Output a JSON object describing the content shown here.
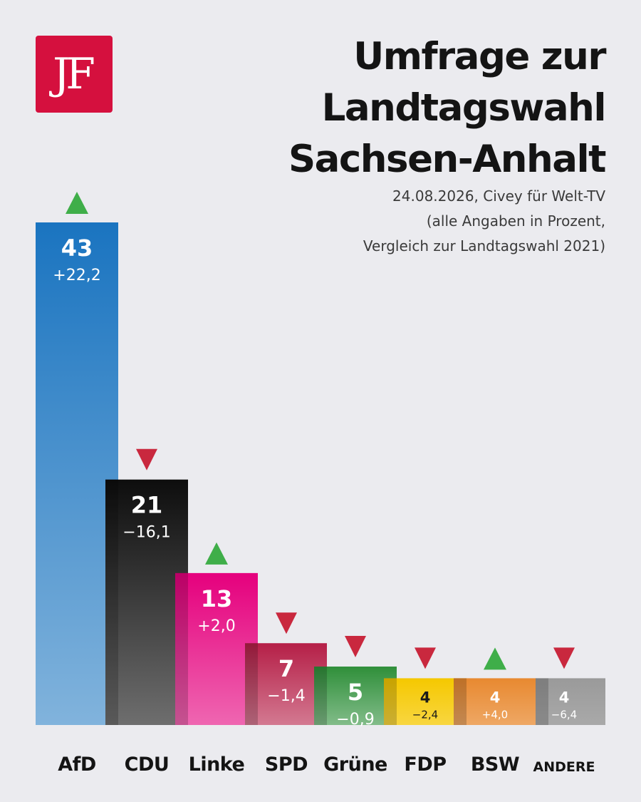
{
  "logo": {
    "text": "JF"
  },
  "header": {
    "title_lines": [
      "Umfrage zur",
      "Landtagswahl",
      "Sachsen-Anhalt"
    ],
    "subtitle_lines": [
      "24.08.2026, Civey für Welt-TV",
      "(alle Angaben in Prozent,",
      "Vergleich zur Landtagswahl 2021)"
    ]
  },
  "chart_data": {
    "type": "bar",
    "title": "Umfrage zur Landtagswahl Sachsen-Anhalt",
    "subtitle": "24.08.2026, Civey für Welt-TV (alle Angaben in Prozent, Vergleich zur Landtagswahl 2021)",
    "categories": [
      "AfD",
      "CDU",
      "Linke",
      "SPD",
      "Grüne",
      "FDP",
      "BSW",
      "ANDERE"
    ],
    "values": [
      43,
      21,
      13,
      7,
      5,
      4,
      4,
      4
    ],
    "value_labels": [
      "43",
      "21",
      "13",
      "7",
      "5",
      "4",
      "4",
      "4"
    ],
    "change_labels": [
      "+22,2",
      "−16,1",
      "+2,0",
      "−1,4",
      "−0,9",
      "−2,4",
      "+4,0",
      "−6,4"
    ],
    "changes": [
      22.2,
      -16.1,
      2.0,
      -1.4,
      -0.9,
      -2.4,
      4.0,
      -6.4
    ],
    "colors": [
      "#1a74c0",
      "#0d0d0d",
      "#e5007d",
      "#b51f47",
      "#2f8f3a",
      "#f5c800",
      "#e88930",
      "#9a9a9a"
    ],
    "up_color": "#3fae49",
    "down_color": "#c9283e",
    "ylim": [
      0,
      43
    ],
    "xlabel": "",
    "ylabel": "",
    "grid": false,
    "legend": "none"
  }
}
